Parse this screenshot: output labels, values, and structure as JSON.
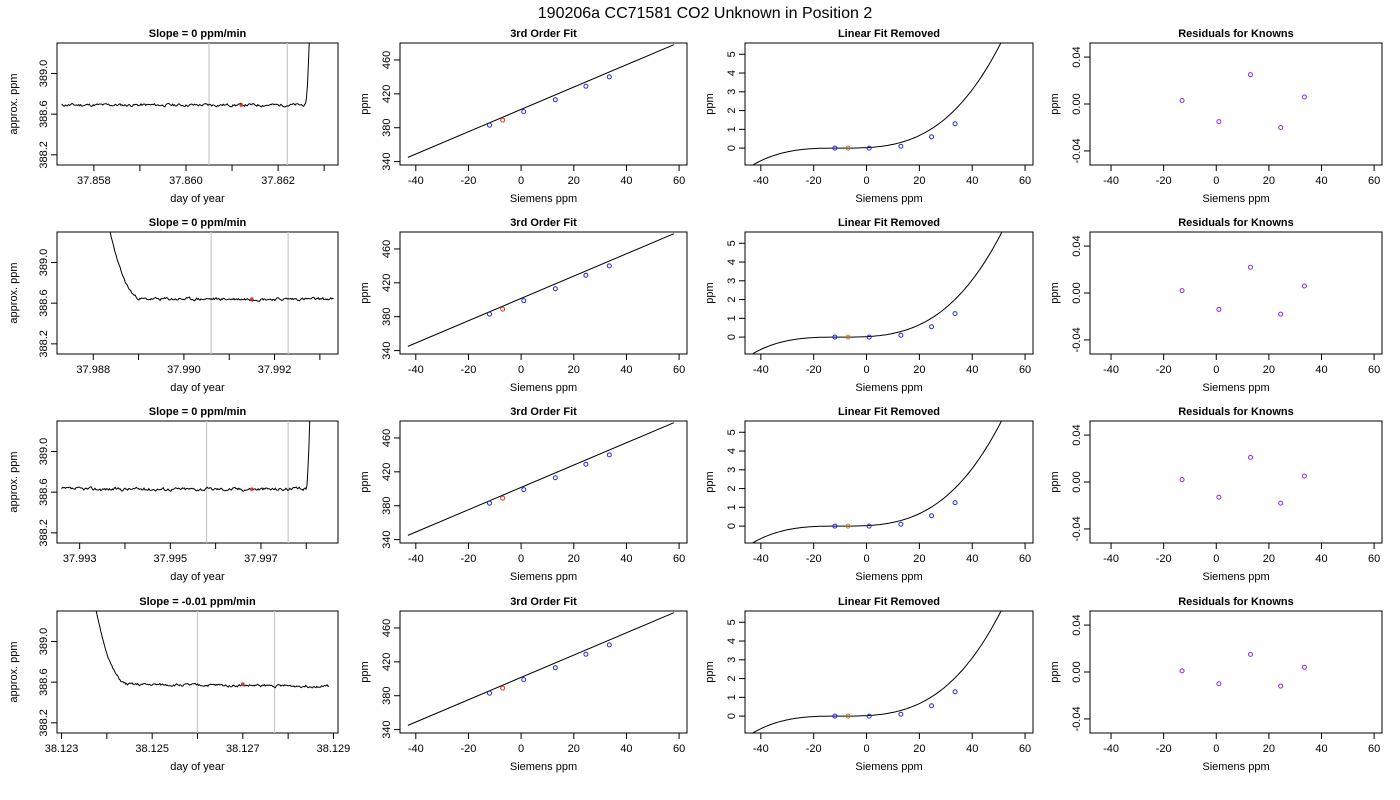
{
  "title": "190206a      CC71581    CO2 Unknown in Position  2",
  "colors": {
    "trace": "#000000",
    "marker_line": "#c8c8c8",
    "unknown_point": "#e8321e",
    "known_point": "#2727e0",
    "fit_unknown_point": "#d27a1c",
    "residual_point": "#8a2be2",
    "frame": "#000000"
  },
  "chart_data": [
    {
      "row": 0,
      "col": 0,
      "type": "line",
      "title": "Slope =  0  ppm/min",
      "xlabel": "day of year",
      "ylabel": "approx. ppm",
      "xlim": [
        37.8572,
        37.8633
      ],
      "ylim": [
        388.1,
        389.3
      ],
      "xticks": [
        37.858,
        37.859,
        37.86,
        37.861,
        37.862,
        37.863
      ],
      "xtick_labels": [
        "37.858",
        "",
        "37.860",
        "",
        "37.862",
        ""
      ],
      "yticks": [
        388.2,
        388.6,
        389.0
      ],
      "ytick_labels": [
        "388.2",
        "388.6",
        "389.0"
      ],
      "vlines": [
        37.8605,
        37.8622
      ],
      "marker": {
        "x": 37.8612,
        "y": 388.69
      },
      "trace": {
        "x0": 37.8573,
        "x1": 37.8627,
        "base": 388.69,
        "noise": 0.012,
        "seed": 11,
        "spike": {
          "side": "end",
          "start": 37.8626,
          "to": 389.6
        }
      }
    },
    {
      "row": 0,
      "col": 1,
      "type": "line",
      "title": "3rd Order Fit",
      "xlabel": "Siemens ppm",
      "ylabel": "ppm",
      "xlim": [
        -46,
        63
      ],
      "ylim": [
        336,
        480
      ],
      "xticks": [
        -40,
        -20,
        0,
        20,
        40,
        60
      ],
      "xtick_labels": [
        "-40",
        "-20",
        "0",
        "20",
        "40",
        "60"
      ],
      "yticks": [
        340,
        380,
        420,
        460
      ],
      "ytick_labels": [
        "340",
        "380",
        "420",
        "460"
      ],
      "fit_line": {
        "x": [
          -43,
          58
        ],
        "y": [
          345,
          478
        ]
      },
      "points": [
        {
          "x": -12,
          "y": 383,
          "c": "known"
        },
        {
          "x": -7,
          "y": 389,
          "c": "unknown"
        },
        {
          "x": 1,
          "y": 399,
          "c": "known"
        },
        {
          "x": 13,
          "y": 413,
          "c": "known"
        },
        {
          "x": 24.6,
          "y": 429,
          "c": "known"
        },
        {
          "x": 33.5,
          "y": 440,
          "c": "known"
        }
      ]
    },
    {
      "row": 0,
      "col": 2,
      "type": "line",
      "title": "Linear Fit Removed",
      "xlabel": "Siemens ppm",
      "ylabel": "ppm",
      "xlim": [
        -46,
        63
      ],
      "ylim": [
        -0.9,
        5.6
      ],
      "xticks": [
        -40,
        -20,
        0,
        20,
        40,
        60
      ],
      "xtick_labels": [
        "-40",
        "-20",
        "0",
        "20",
        "40",
        "60"
      ],
      "yticks": [
        0,
        1,
        2,
        3,
        4,
        5
      ],
      "ytick_labels": [
        "0",
        "1",
        "2",
        "3",
        "4",
        "5"
      ],
      "curve": {
        "x0": -43,
        "x1": 58,
        "x_center": -10,
        "cubic": 2.49e-05,
        "square": 0.00056
      },
      "points": [
        {
          "x": -12,
          "y": 0.0,
          "c": "known"
        },
        {
          "x": -7,
          "y": 0.0,
          "c": "unknown"
        },
        {
          "x": 1,
          "y": 0.0,
          "c": "known"
        },
        {
          "x": 13,
          "y": 0.1,
          "c": "known"
        },
        {
          "x": 24.6,
          "y": 0.6,
          "c": "known"
        },
        {
          "x": 33.5,
          "y": 1.3,
          "c": "known"
        }
      ]
    },
    {
      "row": 0,
      "col": 3,
      "type": "scatter",
      "title": "Residuals for Knowns",
      "xlabel": "Siemens ppm",
      "ylabel": "ppm",
      "xlim": [
        -48,
        63
      ],
      "ylim": [
        -0.052,
        0.052
      ],
      "xticks": [
        -40,
        -20,
        0,
        20,
        40,
        60
      ],
      "xtick_labels": [
        "-40",
        "-20",
        "0",
        "20",
        "40",
        "60"
      ],
      "yticks": [
        -0.04,
        0.0,
        0.04
      ],
      "ytick_labels": [
        "-0.04",
        "0.00",
        "0.04"
      ],
      "points": [
        {
          "x": -13,
          "y": 0.003,
          "c": "residual"
        },
        {
          "x": 1,
          "y": -0.015,
          "c": "residual"
        },
        {
          "x": 13,
          "y": 0.025,
          "c": "residual"
        },
        {
          "x": 24.5,
          "y": -0.02,
          "c": "residual"
        },
        {
          "x": 33.5,
          "y": 0.006,
          "c": "residual"
        }
      ]
    },
    {
      "row": 1,
      "col": 0,
      "type": "line",
      "title": "Slope =  0  ppm/min",
      "xlabel": "day of year",
      "ylabel": "approx. ppm",
      "xlim": [
        37.9872,
        37.9934
      ],
      "ylim": [
        388.1,
        389.3
      ],
      "xticks": [
        37.988,
        37.989,
        37.99,
        37.991,
        37.992,
        37.993
      ],
      "xtick_labels": [
        "37.988",
        "",
        "37.990",
        "",
        "37.992",
        ""
      ],
      "yticks": [
        388.2,
        388.6,
        389.0
      ],
      "ytick_labels": [
        "388.2",
        "388.6",
        "389.0"
      ],
      "vlines": [
        37.9906,
        37.9923
      ],
      "marker": {
        "x": 37.9915,
        "y": 388.64
      },
      "trace": {
        "x0": 37.9882,
        "x1": 37.9933,
        "base": 388.64,
        "noise": 0.012,
        "seed": 23,
        "spike": {
          "side": "start",
          "end": 37.9891,
          "from": 389.6
        }
      }
    },
    {
      "row": 1,
      "col": 1,
      "type": "line",
      "title": "3rd Order Fit",
      "xlabel": "Siemens ppm",
      "ylabel": "ppm",
      "xlim": [
        -46,
        63
      ],
      "ylim": [
        336,
        480
      ],
      "xticks": [
        -40,
        -20,
        0,
        20,
        40,
        60
      ],
      "xtick_labels": [
        "-40",
        "-20",
        "0",
        "20",
        "40",
        "60"
      ],
      "yticks": [
        340,
        380,
        420,
        460
      ],
      "ytick_labels": [
        "340",
        "380",
        "420",
        "460"
      ],
      "fit_line": {
        "x": [
          -43,
          58
        ],
        "y": [
          345,
          478
        ]
      },
      "points": [
        {
          "x": -12,
          "y": 383,
          "c": "known"
        },
        {
          "x": -7,
          "y": 389,
          "c": "unknown"
        },
        {
          "x": 1,
          "y": 399,
          "c": "known"
        },
        {
          "x": 13,
          "y": 413,
          "c": "known"
        },
        {
          "x": 24.6,
          "y": 429,
          "c": "known"
        },
        {
          "x": 33.5,
          "y": 440,
          "c": "known"
        }
      ]
    },
    {
      "row": 1,
      "col": 2,
      "type": "line",
      "title": "Linear Fit Removed",
      "xlabel": "Siemens ppm",
      "ylabel": "ppm",
      "xlim": [
        -46,
        63
      ],
      "ylim": [
        -0.9,
        5.6
      ],
      "xticks": [
        -40,
        -20,
        0,
        20,
        40,
        60
      ],
      "xtick_labels": [
        "-40",
        "-20",
        "0",
        "20",
        "40",
        "60"
      ],
      "yticks": [
        0,
        1,
        2,
        3,
        4,
        5
      ],
      "ytick_labels": [
        "0",
        "1",
        "2",
        "3",
        "4",
        "5"
      ],
      "curve": {
        "x0": -43,
        "x1": 58,
        "x_center": -10,
        "cubic": 2.44e-05,
        "square": 0.00055
      },
      "points": [
        {
          "x": -12,
          "y": 0.0,
          "c": "known"
        },
        {
          "x": -7,
          "y": 0.0,
          "c": "unknown"
        },
        {
          "x": 1,
          "y": 0.0,
          "c": "known"
        },
        {
          "x": 13,
          "y": 0.1,
          "c": "known"
        },
        {
          "x": 24.6,
          "y": 0.55,
          "c": "known"
        },
        {
          "x": 33.5,
          "y": 1.25,
          "c": "known"
        }
      ]
    },
    {
      "row": 1,
      "col": 3,
      "type": "scatter",
      "title": "Residuals for Knowns",
      "xlabel": "Siemens ppm",
      "ylabel": "ppm",
      "xlim": [
        -48,
        63
      ],
      "ylim": [
        -0.052,
        0.052
      ],
      "xticks": [
        -40,
        -20,
        0,
        20,
        40,
        60
      ],
      "xtick_labels": [
        "-40",
        "-20",
        "0",
        "20",
        "40",
        "60"
      ],
      "yticks": [
        -0.04,
        0.0,
        0.04
      ],
      "ytick_labels": [
        "-0.04",
        "0.00",
        "0.04"
      ],
      "points": [
        {
          "x": -13,
          "y": 0.002,
          "c": "residual"
        },
        {
          "x": 1,
          "y": -0.014,
          "c": "residual"
        },
        {
          "x": 13,
          "y": 0.022,
          "c": "residual"
        },
        {
          "x": 24.5,
          "y": -0.018,
          "c": "residual"
        },
        {
          "x": 33.5,
          "y": 0.006,
          "c": "residual"
        }
      ]
    },
    {
      "row": 2,
      "col": 0,
      "type": "line",
      "title": "Slope =  0  ppm/min",
      "xlabel": "day of year",
      "ylabel": "approx. ppm",
      "xlim": [
        37.9925,
        37.9987
      ],
      "ylim": [
        388.1,
        389.3
      ],
      "xticks": [
        37.993,
        37.994,
        37.995,
        37.996,
        37.997,
        37.998
      ],
      "xtick_labels": [
        "37.993",
        "",
        "37.995",
        "",
        "37.997",
        ""
      ],
      "yticks": [
        388.2,
        388.6,
        389.0
      ],
      "ytick_labels": [
        "388.2",
        "388.6",
        "389.0"
      ],
      "vlines": [
        37.9958,
        37.9976
      ],
      "marker": {
        "x": 37.9968,
        "y": 388.63
      },
      "trace": {
        "x0": 37.9926,
        "x1": 37.9981,
        "base": 388.63,
        "noise": 0.014,
        "seed": 37,
        "spike": {
          "side": "end",
          "start": 37.998,
          "to": 389.6
        }
      }
    },
    {
      "row": 2,
      "col": 1,
      "type": "line",
      "title": "3rd Order Fit",
      "xlabel": "Siemens ppm",
      "ylabel": "ppm",
      "xlim": [
        -46,
        63
      ],
      "ylim": [
        336,
        480
      ],
      "xticks": [
        -40,
        -20,
        0,
        20,
        40,
        60
      ],
      "xtick_labels": [
        "-40",
        "-20",
        "0",
        "20",
        "40",
        "60"
      ],
      "yticks": [
        340,
        380,
        420,
        460
      ],
      "ytick_labels": [
        "340",
        "380",
        "420",
        "460"
      ],
      "fit_line": {
        "x": [
          -43,
          58
        ],
        "y": [
          345,
          478
        ]
      },
      "points": [
        {
          "x": -12,
          "y": 383,
          "c": "known"
        },
        {
          "x": -7,
          "y": 389,
          "c": "unknown"
        },
        {
          "x": 1,
          "y": 399,
          "c": "known"
        },
        {
          "x": 13,
          "y": 413,
          "c": "known"
        },
        {
          "x": 24.6,
          "y": 429,
          "c": "known"
        },
        {
          "x": 33.5,
          "y": 440,
          "c": "known"
        }
      ]
    },
    {
      "row": 2,
      "col": 2,
      "type": "line",
      "title": "Linear Fit Removed",
      "xlabel": "Siemens ppm",
      "ylabel": "ppm",
      "xlim": [
        -46,
        63
      ],
      "ylim": [
        -0.9,
        5.6
      ],
      "xticks": [
        -40,
        -20,
        0,
        20,
        40,
        60
      ],
      "xtick_labels": [
        "-40",
        "-20",
        "0",
        "20",
        "40",
        "60"
      ],
      "yticks": [
        0,
        1,
        2,
        3,
        4,
        5
      ],
      "ytick_labels": [
        "0",
        "1",
        "2",
        "3",
        "4",
        "5"
      ],
      "curve": {
        "x0": -43,
        "x1": 58,
        "x_center": -10,
        "cubic": 2.46e-05,
        "square": 0.000555
      },
      "points": [
        {
          "x": -12,
          "y": 0.0,
          "c": "known"
        },
        {
          "x": -7,
          "y": 0.0,
          "c": "unknown"
        },
        {
          "x": 1,
          "y": 0.0,
          "c": "known"
        },
        {
          "x": 13,
          "y": 0.1,
          "c": "known"
        },
        {
          "x": 24.6,
          "y": 0.55,
          "c": "known"
        },
        {
          "x": 33.5,
          "y": 1.25,
          "c": "known"
        }
      ]
    },
    {
      "row": 2,
      "col": 3,
      "type": "scatter",
      "title": "Residuals for Knowns",
      "xlabel": "Siemens ppm",
      "ylabel": "ppm",
      "xlim": [
        -48,
        63
      ],
      "ylim": [
        -0.052,
        0.052
      ],
      "xticks": [
        -40,
        -20,
        0,
        20,
        40,
        60
      ],
      "xtick_labels": [
        "-40",
        "-20",
        "0",
        "20",
        "40",
        "60"
      ],
      "yticks": [
        -0.04,
        0.0,
        0.04
      ],
      "ytick_labels": [
        "-0.04",
        "0.00",
        "0.04"
      ],
      "points": [
        {
          "x": -13,
          "y": 0.002,
          "c": "residual"
        },
        {
          "x": 1,
          "y": -0.013,
          "c": "residual"
        },
        {
          "x": 13,
          "y": 0.021,
          "c": "residual"
        },
        {
          "x": 24.5,
          "y": -0.018,
          "c": "residual"
        },
        {
          "x": 33.5,
          "y": 0.005,
          "c": "residual"
        }
      ]
    },
    {
      "row": 3,
      "col": 0,
      "type": "line",
      "title": "Slope =  -0.01  ppm/min",
      "xlabel": "day of year",
      "ylabel": "approx. ppm",
      "xlim": [
        38.1229,
        38.1291
      ],
      "ylim": [
        388.1,
        389.3
      ],
      "xticks": [
        38.123,
        38.124,
        38.125,
        38.126,
        38.127,
        38.128,
        38.129
      ],
      "xtick_labels": [
        "38.123",
        "",
        "38.125",
        "",
        "38.127",
        "",
        "38.129"
      ],
      "yticks": [
        388.2,
        388.6,
        389.0
      ],
      "ytick_labels": [
        "388.2",
        "388.6",
        "389.0"
      ],
      "vlines": [
        38.126,
        38.1277
      ],
      "marker": {
        "x": 38.127,
        "y": 388.58
      },
      "trace": {
        "x0": 38.1236,
        "x1": 38.1289,
        "base": 388.58,
        "noise": 0.011,
        "seed": 51,
        "slope": -0.02,
        "spike": {
          "side": "start",
          "end": 38.1245,
          "from": 389.6
        }
      }
    },
    {
      "row": 3,
      "col": 1,
      "type": "line",
      "title": "3rd Order Fit",
      "xlabel": "Siemens ppm",
      "ylabel": "ppm",
      "xlim": [
        -46,
        63
      ],
      "ylim": [
        336,
        480
      ],
      "xticks": [
        -40,
        -20,
        0,
        20,
        40,
        60
      ],
      "xtick_labels": [
        "-40",
        "-20",
        "0",
        "20",
        "40",
        "60"
      ],
      "yticks": [
        340,
        380,
        420,
        460
      ],
      "ytick_labels": [
        "340",
        "380",
        "420",
        "460"
      ],
      "fit_line": {
        "x": [
          -43,
          58
        ],
        "y": [
          345,
          478
        ]
      },
      "points": [
        {
          "x": -12,
          "y": 383,
          "c": "known"
        },
        {
          "x": -7,
          "y": 389,
          "c": "unknown"
        },
        {
          "x": 1,
          "y": 399,
          "c": "known"
        },
        {
          "x": 13,
          "y": 413,
          "c": "known"
        },
        {
          "x": 24.6,
          "y": 429,
          "c": "known"
        },
        {
          "x": 33.5,
          "y": 440,
          "c": "known"
        }
      ]
    },
    {
      "row": 3,
      "col": 2,
      "type": "line",
      "title": "Linear Fit Removed",
      "xlabel": "Siemens ppm",
      "ylabel": "ppm",
      "xlim": [
        -46,
        63
      ],
      "ylim": [
        -0.9,
        5.6
      ],
      "xticks": [
        -40,
        -20,
        0,
        20,
        40,
        60
      ],
      "xtick_labels": [
        "-40",
        "-20",
        "0",
        "20",
        "40",
        "60"
      ],
      "yticks": [
        0,
        1,
        2,
        3,
        4,
        5
      ],
      "ytick_labels": [
        "0",
        "1",
        "2",
        "3",
        "4",
        "5"
      ],
      "curve": {
        "x0": -43,
        "x1": 58,
        "x_center": -10,
        "cubic": 2.48e-05,
        "square": 0.00056
      },
      "points": [
        {
          "x": -12,
          "y": 0.0,
          "c": "known"
        },
        {
          "x": -7,
          "y": 0.0,
          "c": "unknown"
        },
        {
          "x": 1,
          "y": 0.0,
          "c": "known"
        },
        {
          "x": 13,
          "y": 0.1,
          "c": "known"
        },
        {
          "x": 24.6,
          "y": 0.55,
          "c": "known"
        },
        {
          "x": 33.5,
          "y": 1.3,
          "c": "known"
        }
      ]
    },
    {
      "row": 3,
      "col": 3,
      "type": "scatter",
      "title": "Residuals for Knowns",
      "xlabel": "Siemens ppm",
      "ylabel": "ppm",
      "xlim": [
        -48,
        63
      ],
      "ylim": [
        -0.052,
        0.052
      ],
      "xticks": [
        -40,
        -20,
        0,
        20,
        40,
        60
      ],
      "xtick_labels": [
        "-40",
        "-20",
        "0",
        "20",
        "40",
        "60"
      ],
      "yticks": [
        -0.04,
        0.0,
        0.04
      ],
      "ytick_labels": [
        "-0.04",
        "0.00",
        "0.04"
      ],
      "points": [
        {
          "x": -13,
          "y": 0.001,
          "c": "residual"
        },
        {
          "x": 1,
          "y": -0.01,
          "c": "residual"
        },
        {
          "x": 13,
          "y": 0.015,
          "c": "residual"
        },
        {
          "x": 24.5,
          "y": -0.012,
          "c": "residual"
        },
        {
          "x": 33.5,
          "y": 0.004,
          "c": "residual"
        }
      ]
    }
  ]
}
